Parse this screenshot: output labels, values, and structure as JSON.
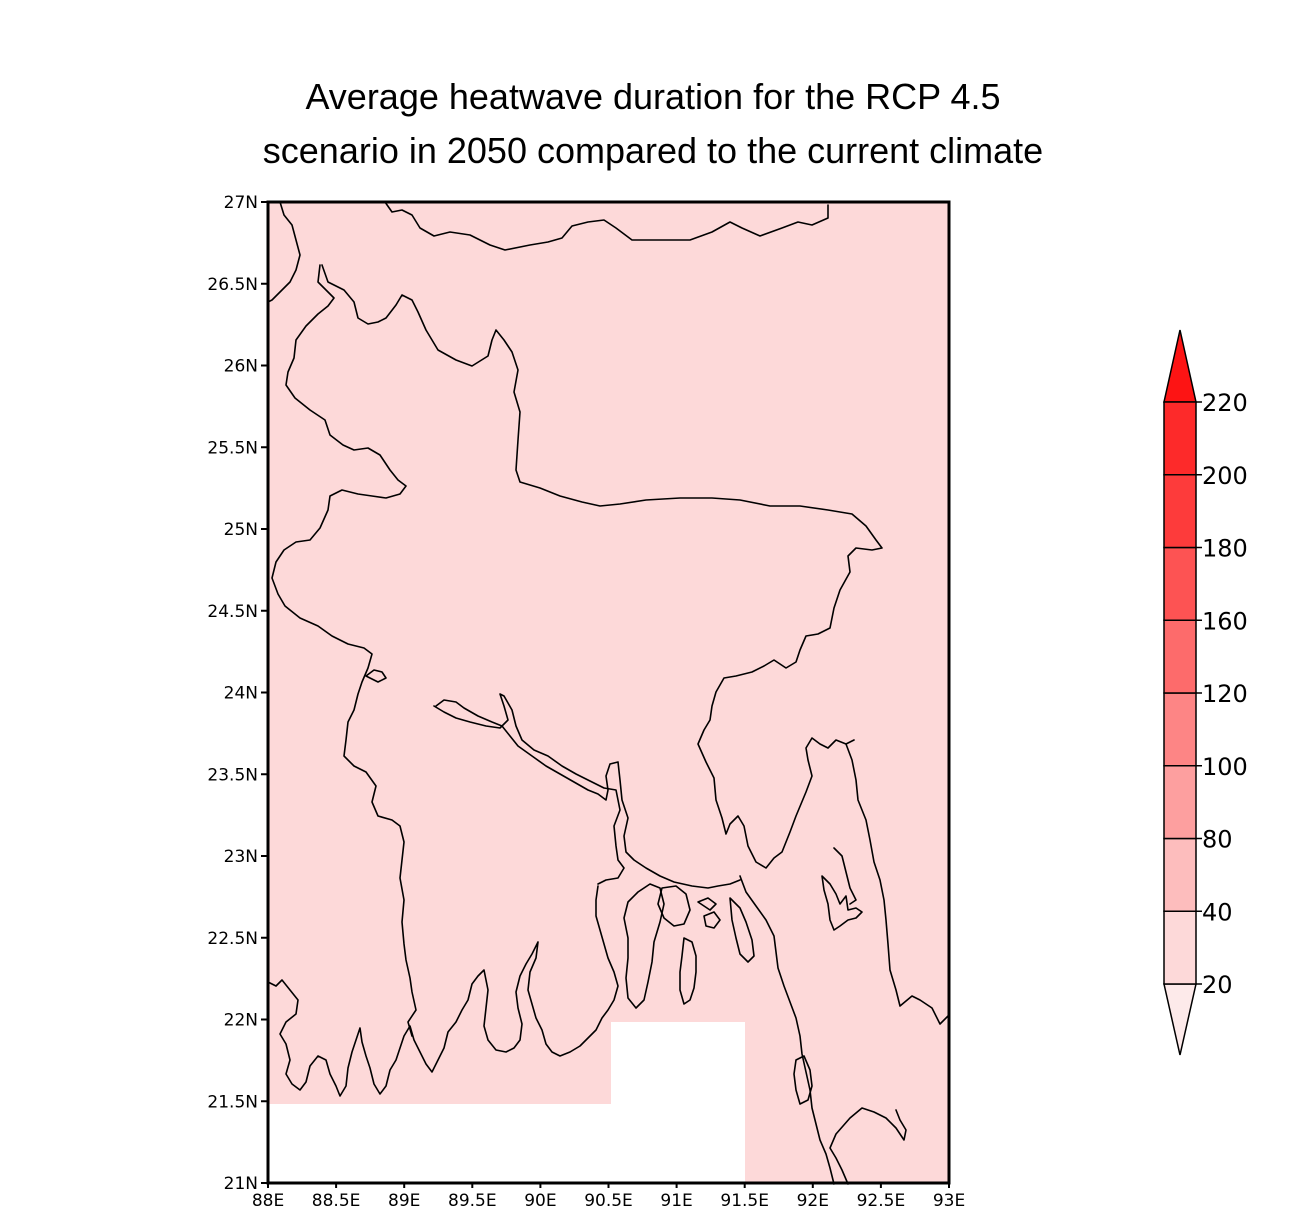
{
  "title": {
    "line1": "Average heatwave duration for the RCP 4.5",
    "line2": "scenario in 2050 compared to the current climate"
  },
  "map": {
    "fill_color": "#fdd9d9",
    "nodata_color": "#ffffff",
    "lon_range": [
      88,
      93
    ],
    "lat_range": [
      21,
      27
    ],
    "lat_ticks": [
      {
        "value": 27,
        "label": "27N"
      },
      {
        "value": 26.5,
        "label": "26.5N"
      },
      {
        "value": 26,
        "label": "26N"
      },
      {
        "value": 25.5,
        "label": "25.5N"
      },
      {
        "value": 25,
        "label": "25N"
      },
      {
        "value": 24.5,
        "label": "24.5N"
      },
      {
        "value": 24,
        "label": "24N"
      },
      {
        "value": 23.5,
        "label": "23.5N"
      },
      {
        "value": 23,
        "label": "23N"
      },
      {
        "value": 22.5,
        "label": "22.5N"
      },
      {
        "value": 22,
        "label": "22N"
      },
      {
        "value": 21.5,
        "label": "21.5N"
      },
      {
        "value": 21,
        "label": "21N"
      }
    ],
    "lon_ticks": [
      {
        "value": 88,
        "label": "88E"
      },
      {
        "value": 88.5,
        "label": "88.5E"
      },
      {
        "value": 89,
        "label": "89E"
      },
      {
        "value": 89.5,
        "label": "89.5E"
      },
      {
        "value": 90,
        "label": "90E"
      },
      {
        "value": 90.5,
        "label": "90.5E"
      },
      {
        "value": 91,
        "label": "91E"
      },
      {
        "value": 91.5,
        "label": "91.5E"
      },
      {
        "value": 92,
        "label": "92E"
      },
      {
        "value": 92.5,
        "label": "92.5E"
      },
      {
        "value": 93,
        "label": "93E"
      }
    ]
  },
  "colorbar": {
    "labels": [
      "20",
      "40",
      "80",
      "100",
      "120",
      "160",
      "180",
      "200",
      "220"
    ],
    "colors": [
      "#fdd9d9",
      "#fdbdbd",
      "#fd9f9f",
      "#fd8585",
      "#fd6b6b",
      "#fd5353",
      "#fd3b3b",
      "#fd2a2a"
    ],
    "low_triangle_color": "#fdeaea",
    "high_triangle_color": "#fd1414"
  }
}
